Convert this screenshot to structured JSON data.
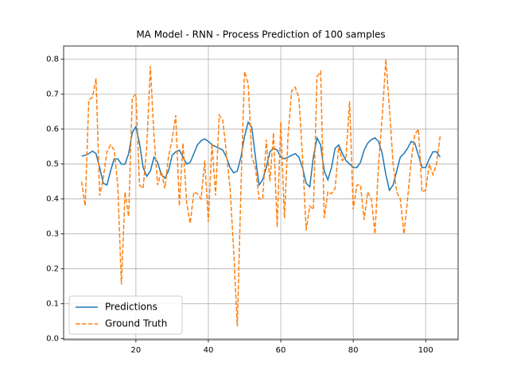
{
  "chart_data": {
    "type": "line",
    "title": "MA Model - RNN - Process Prediction of 100 samples",
    "x": [
      5,
      6,
      7,
      8,
      9,
      10,
      11,
      12,
      13,
      14,
      15,
      16,
      17,
      18,
      19,
      20,
      21,
      22,
      23,
      24,
      25,
      26,
      27,
      28,
      29,
      30,
      31,
      32,
      33,
      34,
      35,
      36,
      37,
      38,
      39,
      40,
      41,
      42,
      43,
      44,
      45,
      46,
      47,
      48,
      49,
      50,
      51,
      52,
      53,
      54,
      55,
      56,
      57,
      58,
      59,
      60,
      61,
      62,
      63,
      64,
      65,
      66,
      67,
      68,
      69,
      70,
      71,
      72,
      73,
      74,
      75,
      76,
      77,
      78,
      79,
      80,
      81,
      82,
      83,
      84,
      85,
      86,
      87,
      88,
      89,
      90,
      91,
      92,
      93,
      94,
      95,
      96,
      97,
      98,
      99,
      100,
      101,
      102,
      103,
      104
    ],
    "series": [
      {
        "name": "Predictions",
        "color": "#1f77b4",
        "dash": "solid",
        "values": [
          0.523,
          0.525,
          0.53,
          0.537,
          0.53,
          0.49,
          0.445,
          0.44,
          0.48,
          0.515,
          0.515,
          0.5,
          0.5,
          0.53,
          0.59,
          0.607,
          0.56,
          0.49,
          0.465,
          0.48,
          0.52,
          0.505,
          0.47,
          0.46,
          0.48,
          0.525,
          0.535,
          0.54,
          0.52,
          0.5,
          0.505,
          0.53,
          0.555,
          0.567,
          0.572,
          0.565,
          0.555,
          0.55,
          0.545,
          0.54,
          0.52,
          0.49,
          0.475,
          0.48,
          0.52,
          0.58,
          0.62,
          0.605,
          0.52,
          0.44,
          0.455,
          0.49,
          0.535,
          0.545,
          0.54,
          0.52,
          0.515,
          0.52,
          0.525,
          0.53,
          0.52,
          0.49,
          0.445,
          0.435,
          0.52,
          0.575,
          0.555,
          0.48,
          0.455,
          0.49,
          0.545,
          0.555,
          0.53,
          0.51,
          0.5,
          0.49,
          0.49,
          0.505,
          0.54,
          0.56,
          0.57,
          0.575,
          0.565,
          0.53,
          0.47,
          0.425,
          0.44,
          0.48,
          0.52,
          0.53,
          0.545,
          0.565,
          0.56,
          0.525,
          0.49,
          0.49,
          0.515,
          0.535,
          0.535,
          0.52
        ]
      },
      {
        "name": "Ground Truth",
        "color": "#ff7f0e",
        "dash": "dashed",
        "values": [
          0.45,
          0.38,
          0.685,
          0.69,
          0.745,
          0.41,
          0.46,
          0.535,
          0.555,
          0.54,
          0.44,
          0.155,
          0.42,
          0.35,
          0.69,
          0.7,
          0.44,
          0.43,
          0.55,
          0.78,
          0.58,
          0.44,
          0.48,
          0.43,
          0.52,
          0.57,
          0.64,
          0.38,
          0.56,
          0.39,
          0.33,
          0.42,
          0.415,
          0.4,
          0.51,
          0.335,
          0.56,
          0.41,
          0.64,
          0.625,
          0.53,
          0.43,
          0.25,
          0.035,
          0.43,
          0.765,
          0.73,
          0.52,
          0.49,
          0.4,
          0.4,
          0.57,
          0.45,
          0.59,
          0.32,
          0.62,
          0.345,
          0.58,
          0.71,
          0.72,
          0.69,
          0.52,
          0.31,
          0.38,
          0.37,
          0.75,
          0.765,
          0.345,
          0.42,
          0.415,
          0.43,
          0.55,
          0.51,
          0.52,
          0.68,
          0.37,
          0.44,
          0.44,
          0.34,
          0.42,
          0.4,
          0.3,
          0.5,
          0.635,
          0.8,
          0.66,
          0.5,
          0.42,
          0.4,
          0.3,
          0.4,
          0.51,
          0.585,
          0.6,
          0.42,
          0.425,
          0.5,
          0.47,
          0.5,
          0.58
        ]
      }
    ],
    "xlim": [
      0.05,
      108.95
    ],
    "ylim": [
      -0.003,
      0.838
    ],
    "xticks": [
      20,
      40,
      60,
      80,
      100
    ],
    "yticks": [
      {
        "value": 0,
        "label": "0.0"
      },
      0.1,
      0.2,
      0.3,
      0.4,
      0.5,
      0.6,
      0.7,
      0.8
    ],
    "grid": true,
    "legend": "lower left"
  }
}
